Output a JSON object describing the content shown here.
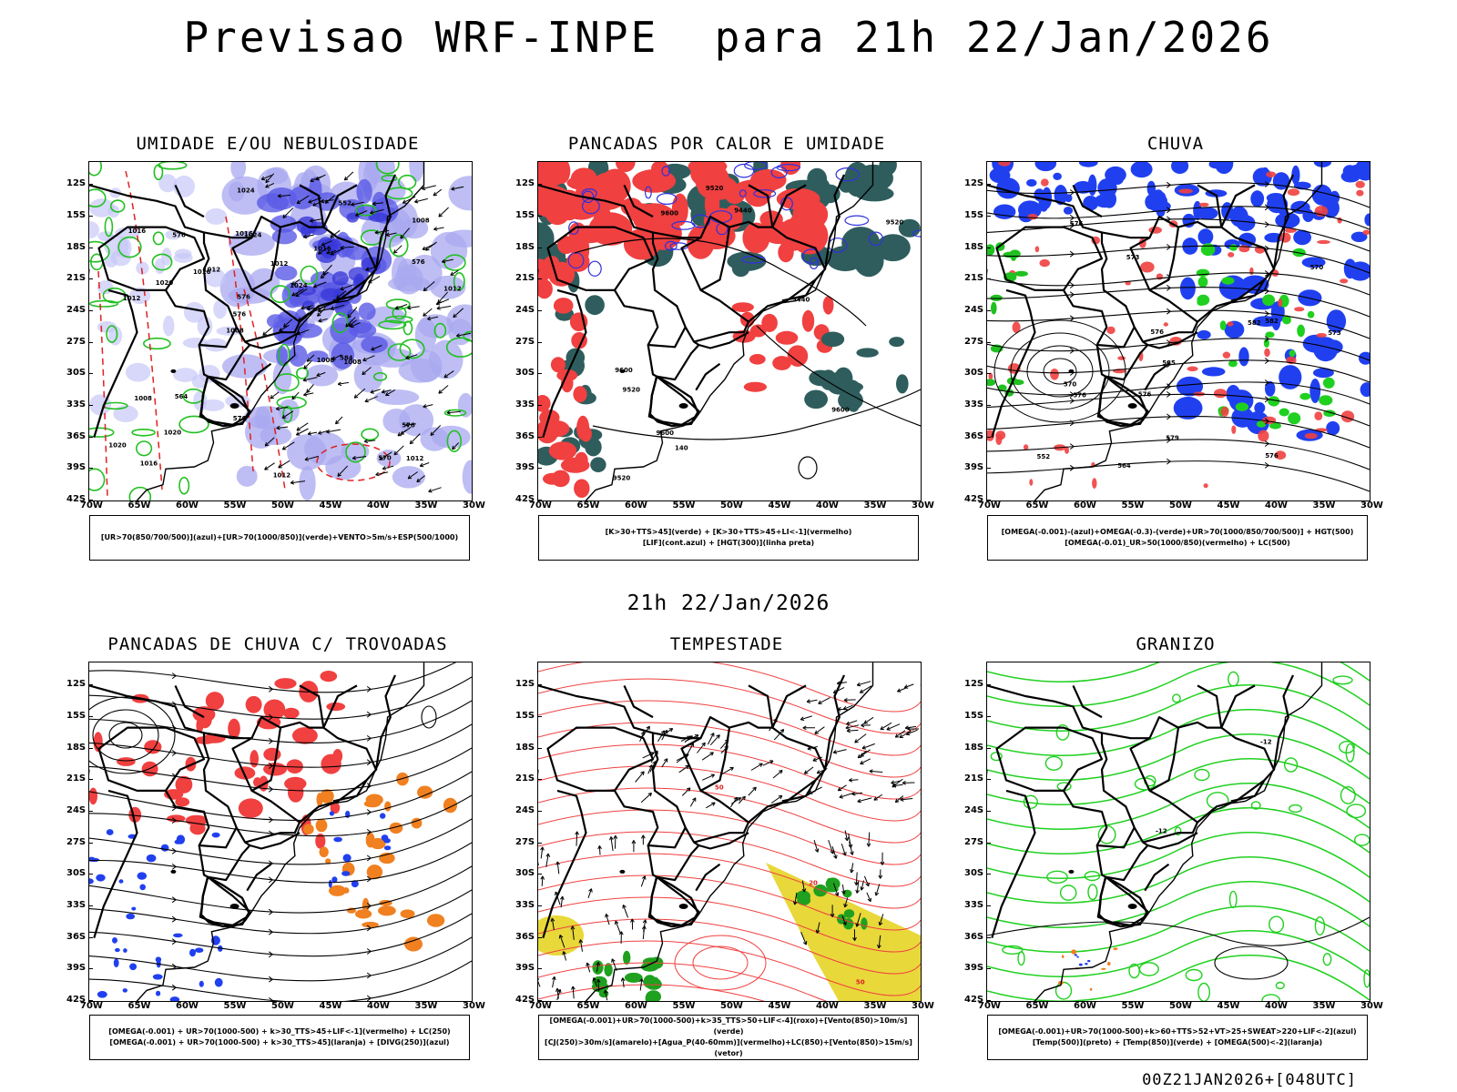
{
  "header": {
    "title": "Previsao WRF-INPE  para 21h 22/Jan/2026",
    "subtitle": "21h 22/Jan/2026",
    "footer": "00Z21JAN2026+[048UTC]"
  },
  "axes": {
    "lat_labels": [
      "12S",
      "15S",
      "18S",
      "21S",
      "24S",
      "27S",
      "30S",
      "33S",
      "36S",
      "39S",
      "42S"
    ],
    "lon_labels": [
      "70W",
      "65W",
      "60W",
      "55W",
      "50W",
      "45W",
      "40W",
      "35W",
      "30W"
    ]
  },
  "panels": [
    {
      "title": "UMIDADE E/OU NEBULOSIDADE",
      "legend": [
        "[UR>70(850/700/500)](azul)+[UR>70(1000/850)](verde)+VENTO>5m/s+ESP(500/1000)"
      ]
    },
    {
      "title": "PANCADAS POR CALOR E UMIDADE",
      "legend": [
        "[K>30+TTS>45](verde) + [K>30+TTS>45+LI<-1](vermelho)",
        "[LIF](cont.azul) + [HGT(300)](linha preta)"
      ]
    },
    {
      "title": "CHUVA",
      "legend": [
        "[OMEGA(-0.001)-(azul)+OMEGA(-0.3)-(verde)+UR>70(1000/850/700/500)] + HGT(500)",
        "[OMEGA(-0.01)_UR>50(1000/850)(vermelho) + LC(500)"
      ]
    },
    {
      "title": "PANCADAS DE CHUVA C/ TROVOADAS",
      "legend": [
        "[OMEGA(-0.001) + UR>70(1000-500) + k>30_TTS>45+LIF<-1](vermelho) + LC(250)",
        "[OMEGA(-0.001) + UR>70(1000-500) + k>30_TTS>45](laranja) + [DIVG(250)](azul)"
      ]
    },
    {
      "title": "TEMPESTADE",
      "legend": [
        "[OMEGA(-0.001)+UR>70(1000-500)+k>35_TTS>50+LIF<-4](roxo)+[Vento(850)>10m/s](verde)",
        "[CJ(250)>30m/s](amarelo)+[Agua_P(40-60mm)](vermelho)+LC(850)+[Vento(850)>15m/s](vetor)"
      ]
    },
    {
      "title": "GRANIZO",
      "legend": [
        "[OMEGA(-0.001)+UR>70(1000-500)+k>60+TTS>52+VT>25+SWEAT>220+LIF<-2](azul)",
        "[Temp(500)](preto) + [Temp(850)](verde) + [OMEGA(500)<-2](laranja)"
      ]
    }
  ],
  "chart_data": [
    {
      "type": "map",
      "title": "UMIDADE E/OU NEBULOSIDADE",
      "contour_labels": [
        "1012",
        "1012",
        "1008",
        "1008",
        "1016",
        "1016",
        "1016",
        "1012",
        "1008",
        "1012",
        "1020",
        "1020",
        "1024",
        "1024",
        "1008",
        "1016",
        "1024",
        "1012",
        "1008",
        "576",
        "576",
        "576",
        "576",
        "576",
        "552",
        "564",
        "570",
        "576",
        "584",
        "1012",
        "1016",
        "1020"
      ]
    },
    {
      "type": "map",
      "title": "PANCADAS POR CALOR E UMIDADE",
      "contour_labels": [
        "9600",
        "9600",
        "9600",
        "9520",
        "9520",
        "9440",
        "9440",
        "9600",
        "9520",
        "9520",
        "140"
      ]
    },
    {
      "type": "map",
      "title": "CHUVA",
      "contour_labels": [
        "582",
        "576",
        "582",
        "585",
        "579",
        "573",
        "576",
        "570",
        "576",
        "573",
        "576",
        "576",
        "564",
        "570",
        "552"
      ]
    },
    {
      "type": "map",
      "title": "PANCADAS DE CHUVA C/ TROVOADAS",
      "contour_labels": []
    },
    {
      "type": "map",
      "title": "TEMPESTADE",
      "contour_labels": [
        "50",
        "50",
        "20"
      ]
    },
    {
      "type": "map",
      "title": "GRANIZO",
      "contour_labels": [
        "-12",
        "-12"
      ]
    }
  ]
}
